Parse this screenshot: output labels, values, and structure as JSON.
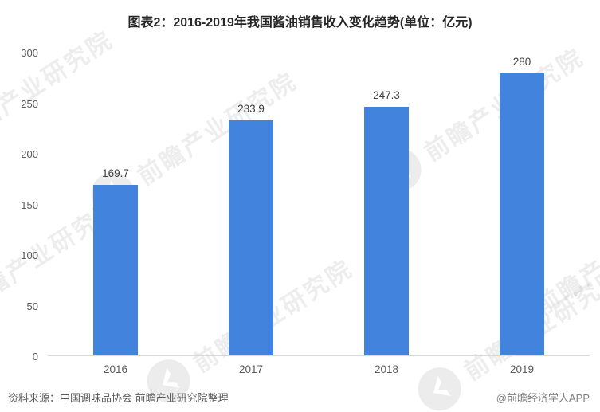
{
  "title": "图表2：2016-2019年我国酱油销售收入变化趋势(单位：亿元)",
  "chart_data": {
    "type": "bar",
    "title": "图表2：2016-2019年我国酱油销售收入变化趋势",
    "unit": "亿元",
    "categories": [
      "2016",
      "2017",
      "2018",
      "2019"
    ],
    "values": [
      169.7,
      233.9,
      247.3,
      280
    ],
    "value_labels": [
      "169.7",
      "233.9",
      "247.3",
      "280"
    ],
    "xlabel": "",
    "ylabel": "",
    "ylim": [
      0,
      300
    ],
    "y_ticks": [
      "300",
      "250",
      "200",
      "150",
      "100",
      "50",
      "0"
    ],
    "grid": false,
    "legend": false
  },
  "footer": {
    "source": "资料来源：中国调味品协会 前瞻产业研究院整理",
    "credit": "@前瞻经济学人APP"
  },
  "watermark": {
    "text": "前瞻产业研究院"
  },
  "colors": {
    "bar": "#4183DD",
    "axis_line": "#d9d9d9",
    "title_text": "#262626",
    "value_label_text": "#404040",
    "tick_text": "#595959",
    "source_text": "#595959",
    "credit_text": "#7f7f7f"
  }
}
